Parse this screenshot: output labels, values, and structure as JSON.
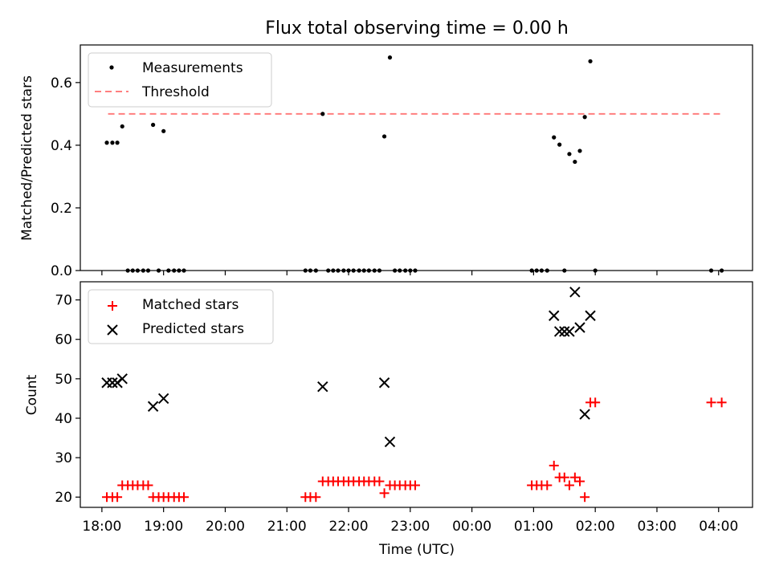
{
  "colors": {
    "measurement": "#000000",
    "threshold": "#ff7f7f",
    "matched": "#ff0000",
    "predicted": "#000000"
  },
  "chart_data": [
    {
      "type": "scatter",
      "title": "Flux total observing time = 0.00 h",
      "xlabel": "",
      "ylabel": "Matched/Predicted stars",
      "xlim_hours": [
        17.65,
        28.55
      ],
      "ylim": [
        0,
        0.72
      ],
      "yticks": [
        0.0,
        0.2,
        0.4,
        0.6
      ],
      "ytick_labels": [
        "0.0",
        "0.2",
        "0.4",
        "0.6"
      ],
      "legend_loc": "upper left",
      "legend": [
        "Measurements",
        "Threshold"
      ],
      "threshold": {
        "name": "Threshold",
        "value": 0.5,
        "x_range_hours": [
          18.1,
          28.05
        ]
      },
      "series": [
        {
          "name": "Measurements",
          "marker": "dot",
          "points": [
            [
              18.08,
              0.408
            ],
            [
              18.17,
              0.408
            ],
            [
              18.25,
              0.408
            ],
            [
              18.33,
              0.46
            ],
            [
              18.42,
              0.0
            ],
            [
              18.5,
              0.0
            ],
            [
              18.58,
              0.0
            ],
            [
              18.67,
              0.0
            ],
            [
              18.75,
              0.0
            ],
            [
              18.83,
              0.465
            ],
            [
              18.92,
              0.0
            ],
            [
              19.0,
              0.445
            ],
            [
              19.08,
              0.0
            ],
            [
              19.17,
              0.0
            ],
            [
              19.25,
              0.0
            ],
            [
              19.33,
              0.0
            ],
            [
              21.3,
              0.0
            ],
            [
              21.38,
              0.0
            ],
            [
              21.47,
              0.0
            ],
            [
              21.58,
              0.5
            ],
            [
              21.67,
              0.0
            ],
            [
              21.75,
              0.0
            ],
            [
              21.83,
              0.0
            ],
            [
              21.92,
              0.0
            ],
            [
              22.0,
              0.0
            ],
            [
              22.08,
              0.0
            ],
            [
              22.17,
              0.0
            ],
            [
              22.25,
              0.0
            ],
            [
              22.33,
              0.0
            ],
            [
              22.42,
              0.0
            ],
            [
              22.5,
              0.0
            ],
            [
              22.58,
              0.428
            ],
            [
              22.67,
              0.68
            ],
            [
              22.75,
              0.0
            ],
            [
              22.83,
              0.0
            ],
            [
              22.92,
              0.0
            ],
            [
              23.0,
              0.0
            ],
            [
              23.08,
              0.0
            ],
            [
              24.97,
              0.0
            ],
            [
              25.05,
              0.0
            ],
            [
              25.13,
              0.0
            ],
            [
              25.22,
              0.0
            ],
            [
              25.33,
              0.425
            ],
            [
              25.42,
              0.402
            ],
            [
              25.5,
              0.0
            ],
            [
              25.58,
              0.372
            ],
            [
              25.67,
              0.347
            ],
            [
              25.75,
              0.382
            ],
            [
              25.83,
              0.49
            ],
            [
              25.92,
              0.668
            ],
            [
              26.0,
              0.0
            ],
            [
              27.88,
              0.0
            ],
            [
              28.05,
              0.0
            ]
          ]
        }
      ]
    },
    {
      "type": "scatter",
      "title": "",
      "xlabel": "Time (UTC)",
      "ylabel": "Count",
      "xlim_hours": [
        17.65,
        28.55
      ],
      "ylim": [
        17.4,
        74.6
      ],
      "yticks": [
        20,
        30,
        40,
        50,
        60,
        70
      ],
      "ytick_labels": [
        "20",
        "30",
        "40",
        "50",
        "60",
        "70"
      ],
      "xticks_hours": [
        18,
        19,
        20,
        21,
        22,
        23,
        24,
        25,
        26,
        27,
        28
      ],
      "xtick_labels": [
        "18:00",
        "19:00",
        "20:00",
        "21:00",
        "22:00",
        "23:00",
        "00:00",
        "01:00",
        "02:00",
        "03:00",
        "04:00"
      ],
      "legend_loc": "upper left",
      "legend": [
        "Matched stars",
        "Predicted stars"
      ],
      "series": [
        {
          "name": "Matched stars",
          "marker": "plus",
          "points": [
            [
              18.08,
              20
            ],
            [
              18.17,
              20
            ],
            [
              18.25,
              20
            ],
            [
              18.33,
              23
            ],
            [
              18.42,
              23
            ],
            [
              18.5,
              23
            ],
            [
              18.58,
              23
            ],
            [
              18.67,
              23
            ],
            [
              18.75,
              23
            ],
            [
              18.83,
              20
            ],
            [
              18.92,
              20
            ],
            [
              19.0,
              20
            ],
            [
              19.08,
              20
            ],
            [
              19.17,
              20
            ],
            [
              19.25,
              20
            ],
            [
              19.33,
              20
            ],
            [
              21.3,
              20
            ],
            [
              21.38,
              20
            ],
            [
              21.47,
              20
            ],
            [
              21.58,
              24
            ],
            [
              21.67,
              24
            ],
            [
              21.75,
              24
            ],
            [
              21.83,
              24
            ],
            [
              21.92,
              24
            ],
            [
              22.0,
              24
            ],
            [
              22.08,
              24
            ],
            [
              22.17,
              24
            ],
            [
              22.25,
              24
            ],
            [
              22.33,
              24
            ],
            [
              22.42,
              24
            ],
            [
              22.5,
              24
            ],
            [
              22.58,
              21
            ],
            [
              22.67,
              23
            ],
            [
              22.75,
              23
            ],
            [
              22.83,
              23
            ],
            [
              22.92,
              23
            ],
            [
              23.0,
              23
            ],
            [
              23.08,
              23
            ],
            [
              24.97,
              23
            ],
            [
              25.05,
              23
            ],
            [
              25.13,
              23
            ],
            [
              25.22,
              23
            ],
            [
              25.33,
              28
            ],
            [
              25.42,
              25
            ],
            [
              25.5,
              25
            ],
            [
              25.58,
              23
            ],
            [
              25.67,
              25
            ],
            [
              25.75,
              24
            ],
            [
              25.83,
              20
            ],
            [
              25.92,
              44
            ],
            [
              26.0,
              44
            ],
            [
              27.88,
              44
            ],
            [
              28.05,
              44
            ]
          ]
        },
        {
          "name": "Predicted stars",
          "marker": "x",
          "points": [
            [
              18.08,
              49
            ],
            [
              18.17,
              49
            ],
            [
              18.25,
              49
            ],
            [
              18.33,
              50
            ],
            [
              18.83,
              43
            ],
            [
              19.0,
              45
            ],
            [
              21.58,
              48
            ],
            [
              22.58,
              49
            ],
            [
              22.67,
              34
            ],
            [
              25.33,
              66
            ],
            [
              25.42,
              62
            ],
            [
              25.5,
              62
            ],
            [
              25.58,
              62
            ],
            [
              25.67,
              72
            ],
            [
              25.75,
              63
            ],
            [
              25.83,
              41
            ],
            [
              25.92,
              66
            ]
          ]
        }
      ]
    }
  ]
}
